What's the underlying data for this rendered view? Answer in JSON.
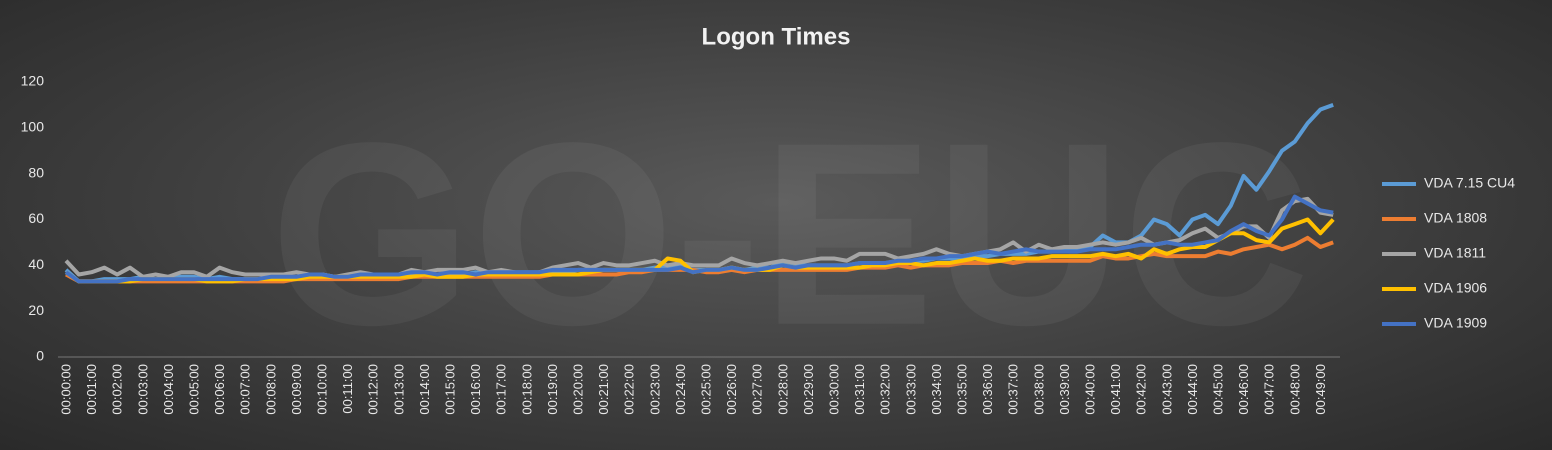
{
  "chart_data": {
    "type": "line",
    "title": "Logon Times",
    "watermark": "GO-EUC",
    "categories": [
      "00:00:00",
      null,
      "00:01:00",
      null,
      "00:02:00",
      null,
      "00:03:00",
      null,
      "00:04:00",
      null,
      "00:05:00",
      null,
      "00:06:00",
      null,
      "00:07:00",
      null,
      "00:08:00",
      null,
      "00:09:00",
      null,
      "00:10:00",
      null,
      "00:11:00",
      null,
      "00:12:00",
      null,
      "00:13:00",
      null,
      "00:14:00",
      null,
      "00:15:00",
      null,
      "00:16:00",
      null,
      "00:17:00",
      null,
      "00:18:00",
      null,
      "00:19:00",
      null,
      "00:20:00",
      null,
      "00:21:00",
      null,
      "00:22:00",
      null,
      "00:23:00",
      null,
      "00:24:00",
      null,
      "00:25:00",
      null,
      "00:26:00",
      null,
      "00:27:00",
      null,
      "00:28:00",
      null,
      "00:29:00",
      null,
      "00:30:00",
      null,
      "00:31:00",
      null,
      "00:32:00",
      null,
      "00:33:00",
      null,
      "00:34:00",
      null,
      "00:35:00",
      null,
      "00:36:00",
      null,
      "00:37:00",
      null,
      "00:38:00",
      null,
      "00:39:00",
      null,
      "00:40:00",
      null,
      "00:41:00",
      null,
      "00:42:00",
      null,
      "00:43:00",
      null,
      "00:44:00",
      null,
      "00:45:00",
      null,
      "00:46:00",
      null,
      "00:47:00",
      null,
      "00:48:00",
      null,
      "00:49:00",
      null
    ],
    "series": [
      {
        "name": "VDA 7.15 CU4",
        "color": "#5b9bd5",
        "values": [
          38,
          33,
          33,
          34,
          34,
          34,
          35,
          34,
          35,
          35,
          35,
          34,
          35,
          34,
          34,
          34,
          34,
          34,
          35,
          35,
          36,
          35,
          35,
          35,
          36,
          36,
          36,
          36,
          36,
          36,
          36,
          36,
          37,
          36,
          37,
          37,
          37,
          37,
          37,
          37,
          38,
          38,
          38,
          38,
          38,
          38,
          39,
          39,
          40,
          38,
          38,
          38,
          39,
          38,
          39,
          39,
          41,
          40,
          40,
          40,
          40,
          40,
          41,
          41,
          41,
          42,
          42,
          42,
          43,
          43,
          43,
          44,
          44,
          45,
          45,
          45,
          46,
          46,
          47,
          47,
          48,
          53,
          50,
          50,
          53,
          60,
          58,
          53,
          60,
          62,
          58,
          66,
          79,
          73,
          81,
          90,
          94,
          102,
          108,
          110
        ]
      },
      {
        "name": "VDA 1808",
        "color": "#ed7d31",
        "values": [
          36,
          33,
          33,
          33,
          33,
          33,
          33,
          33,
          33,
          33,
          33,
          33,
          33,
          33,
          33,
          33,
          33,
          33,
          34,
          34,
          34,
          34,
          34,
          34,
          34,
          34,
          34,
          35,
          35,
          35,
          35,
          35,
          35,
          35,
          35,
          35,
          35,
          35,
          36,
          36,
          36,
          36,
          36,
          36,
          37,
          37,
          38,
          38,
          38,
          38,
          37,
          37,
          38,
          37,
          38,
          38,
          38,
          38,
          38,
          38,
          38,
          38,
          39,
          39,
          39,
          40,
          39,
          40,
          40,
          40,
          41,
          41,
          41,
          42,
          41,
          42,
          42,
          42,
          42,
          42,
          42,
          44,
          43,
          43,
          44,
          45,
          44,
          44,
          44,
          44,
          46,
          45,
          47,
          48,
          49,
          47,
          49,
          52,
          48,
          50
        ]
      },
      {
        "name": "VDA 1811",
        "color": "#a5a5a5",
        "values": [
          42,
          36,
          37,
          39,
          36,
          39,
          35,
          36,
          35,
          37,
          37,
          35,
          39,
          37,
          36,
          36,
          36,
          36,
          37,
          36,
          36,
          35,
          36,
          37,
          36,
          36,
          36,
          38,
          37,
          38,
          38,
          38,
          39,
          37,
          38,
          37,
          36,
          37,
          39,
          40,
          41,
          39,
          41,
          40,
          40,
          41,
          42,
          40,
          41,
          40,
          40,
          40,
          43,
          41,
          40,
          41,
          42,
          41,
          42,
          43,
          43,
          42,
          45,
          45,
          45,
          43,
          44,
          45,
          47,
          45,
          44,
          45,
          46,
          47,
          50,
          46,
          49,
          47,
          48,
          48,
          49,
          50,
          49,
          50,
          52,
          49,
          50,
          51,
          54,
          56,
          52,
          54,
          57,
          57,
          52,
          64,
          68,
          69,
          63,
          62
        ]
      },
      {
        "name": "VDA 1906",
        "color": "#ffc000",
        "values": [
          37,
          33,
          33,
          33,
          33,
          33,
          34,
          34,
          34,
          34,
          34,
          33,
          33,
          33,
          34,
          34,
          34,
          34,
          34,
          35,
          35,
          35,
          35,
          35,
          35,
          35,
          35,
          35,
          36,
          35,
          35,
          35,
          36,
          36,
          36,
          36,
          36,
          36,
          36,
          36,
          36,
          37,
          38,
          38,
          38,
          38,
          38,
          43,
          42,
          37,
          38,
          38,
          39,
          38,
          38,
          38,
          40,
          39,
          39,
          39,
          39,
          39,
          39,
          40,
          40,
          41,
          41,
          40,
          41,
          41,
          42,
          43,
          42,
          42,
          43,
          43,
          43,
          44,
          44,
          44,
          44,
          45,
          44,
          45,
          43,
          47,
          45,
          47,
          48,
          48,
          51,
          54,
          54,
          51,
          50,
          56,
          58,
          60,
          54,
          60
        ]
      },
      {
        "name": "VDA 1909",
        "color": "#4472c4",
        "values": [
          37,
          33,
          33,
          33,
          33,
          34,
          34,
          34,
          34,
          34,
          34,
          34,
          34,
          34,
          34,
          34,
          35,
          35,
          35,
          36,
          36,
          35,
          35,
          36,
          36,
          36,
          36,
          37,
          37,
          36,
          37,
          37,
          36,
          37,
          37,
          37,
          37,
          37,
          38,
          38,
          38,
          38,
          38,
          38,
          38,
          38,
          38,
          38,
          39,
          37,
          38,
          38,
          39,
          38,
          38,
          39,
          40,
          39,
          40,
          40,
          40,
          40,
          41,
          41,
          41,
          42,
          42,
          43,
          43,
          44,
          44,
          45,
          46,
          45,
          46,
          47,
          46,
          46,
          46,
          46,
          47,
          47,
          47,
          48,
          49,
          49,
          50,
          49,
          49,
          50,
          51,
          55,
          58,
          55,
          53,
          60,
          70,
          67,
          64,
          63
        ]
      }
    ],
    "ylim": [
      0,
      120
    ],
    "yticks": [
      0,
      20,
      40,
      60,
      80,
      100,
      120
    ],
    "grid": false,
    "legend": "right"
  }
}
